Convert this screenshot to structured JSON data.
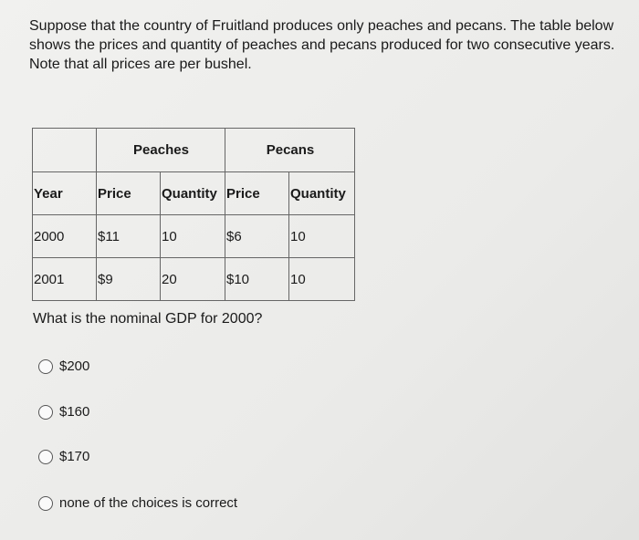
{
  "question": "Suppose that the country of Fruitland produces only peaches and pecans. The table below shows the prices and quantity of peaches and pecans produced for two consecutive years. Note that all prices are per bushel.",
  "table": {
    "group_headers": [
      "",
      "Peaches",
      "Pecans"
    ],
    "columns": [
      "Year",
      "Price",
      "Quantity",
      "Price",
      "Quantity"
    ],
    "rows": [
      [
        "2000",
        "$11",
        "10",
        "$6",
        "10"
      ],
      [
        "2001",
        "$9",
        "20",
        "$10",
        "10"
      ]
    ]
  },
  "prompt": "What is the nominal GDP for 2000?",
  "options": [
    "$200",
    "$160",
    "$170",
    "none of the choices is correct"
  ]
}
